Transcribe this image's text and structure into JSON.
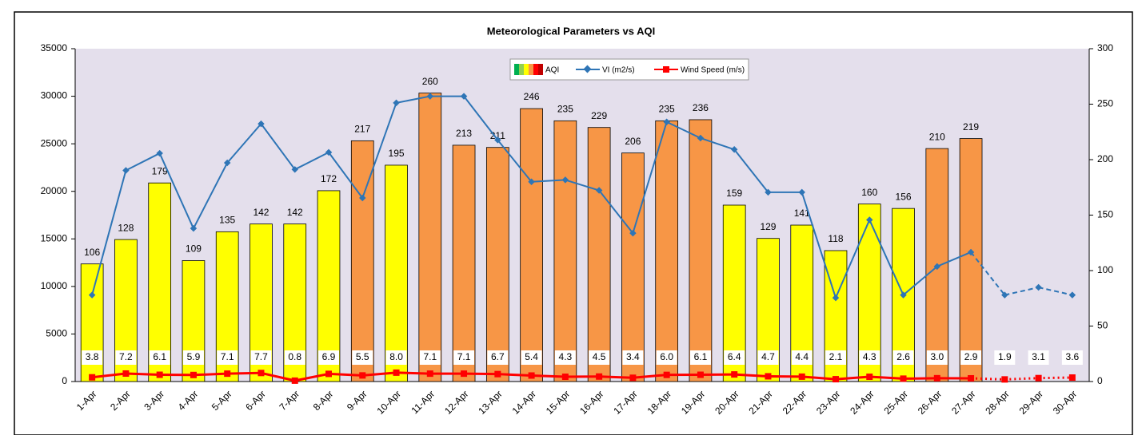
{
  "chart_data": {
    "type": "combo",
    "title": "Meteorological Parameters vs AQI",
    "categories": [
      "1-Apr",
      "2-Apr",
      "3-Apr",
      "4-Apr",
      "5-Apr",
      "6-Apr",
      "7-Apr",
      "8-Apr",
      "9-Apr",
      "10-Apr",
      "11-Apr",
      "12-Apr",
      "13-Apr",
      "14-Apr",
      "15-Apr",
      "16-Apr",
      "17-Apr",
      "18-Apr",
      "19-Apr",
      "20-Apr",
      "21-Apr",
      "22-Apr",
      "23-Apr",
      "24-Apr",
      "25-Apr",
      "26-Apr",
      "27-Apr",
      "28-Apr",
      "29-Apr",
      "30-Apr"
    ],
    "series": [
      {
        "name": "AQI",
        "type": "bar",
        "axis": "y2",
        "colors": [
          "#ffff00",
          "#ffff00",
          "#ffff00",
          "#ffff00",
          "#ffff00",
          "#ffff00",
          "#ffff00",
          "#ffff00",
          "#f79646",
          "#ffff00",
          "#f79646",
          "#f79646",
          "#f79646",
          "#f79646",
          "#f79646",
          "#f79646",
          "#f79646",
          "#f79646",
          "#f79646",
          "#ffff00",
          "#ffff00",
          "#ffff00",
          "#ffff00",
          "#ffff00",
          "#ffff00",
          "#f79646",
          "#f79646",
          null,
          null,
          null
        ],
        "values": [
          106,
          128,
          179,
          109,
          135,
          142,
          142,
          172,
          217,
          195,
          260,
          213,
          211,
          246,
          235,
          229,
          206,
          235,
          236,
          159,
          129,
          141,
          118,
          160,
          156,
          210,
          219,
          null,
          null,
          null
        ]
      },
      {
        "name": "VI (m2/s)",
        "type": "line",
        "color": "#2e75b6",
        "values": [
          9100,
          22200,
          24000,
          16100,
          23000,
          27100,
          22300,
          24100,
          19300,
          29300,
          30000,
          30000,
          25400,
          21000,
          21200,
          20100,
          15600,
          27300,
          25600,
          24400,
          19900,
          19900,
          8800,
          17000,
          9100,
          12100,
          13600,
          9100,
          9900,
          9100
        ]
      },
      {
        "name": "Wind Speed (m/s)",
        "type": "line",
        "color": "#ff0000",
        "axis": "y2",
        "values": [
          3.8,
          7.2,
          6.1,
          5.9,
          7.1,
          7.7,
          0.8,
          6.9,
          5.5,
          8.0,
          7.1,
          7.1,
          6.7,
          5.4,
          4.3,
          4.5,
          3.4,
          6.0,
          6.1,
          6.4,
          4.7,
          4.4,
          2.1,
          4.3,
          2.6,
          3.0,
          2.9,
          1.9,
          3.1,
          3.6
        ],
        "value_labels": [
          "3.8",
          "7.2",
          "6.1",
          "5.9",
          "7.1",
          "7.7",
          "0.8",
          "6.9",
          "5.5",
          "8.0",
          "7.1",
          "7.1",
          "6.7",
          "5.4",
          "4.3",
          "4.5",
          "3.4",
          "6.0",
          "6.1",
          "6.4",
          "4.7",
          "4.4",
          "2.1",
          "4.3",
          "2.6",
          "3.0",
          "2.9",
          "1.9",
          "3.1",
          "3.6"
        ]
      }
    ],
    "ylim": [
      0,
      35000
    ],
    "yticks": [
      0,
      5000,
      10000,
      15000,
      20000,
      25000,
      30000,
      35000
    ],
    "y2lim": [
      0,
      300
    ],
    "y2ticks": [
      0,
      50,
      100,
      150,
      200,
      250,
      300
    ]
  }
}
